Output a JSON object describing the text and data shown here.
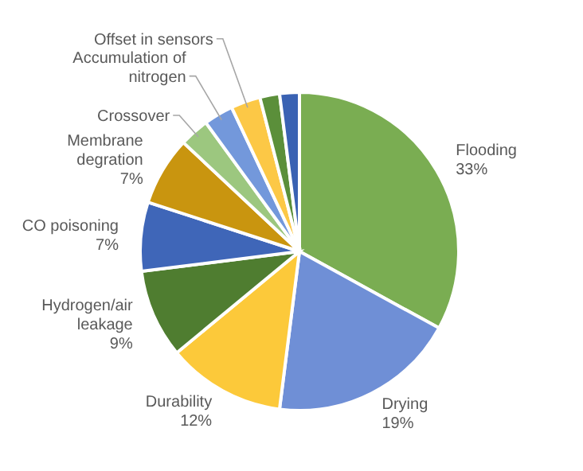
{
  "chart_data": {
    "type": "pie",
    "categories": [
      "Flooding",
      "Drying",
      "Durability",
      "Hydrogen/air leakage",
      "CO poisoning",
      "Membrane degration",
      "Crossover",
      "Accumulation of nitrogen",
      "Offset in sensors",
      null,
      null
    ],
    "values": [
      33,
      19,
      12,
      9,
      7,
      7,
      3,
      3,
      3,
      2,
      2
    ],
    "value_labels": [
      "33%",
      "19%",
      "12%",
      "9%",
      "7%",
      "7%",
      null,
      null,
      null,
      null,
      null
    ],
    "colors": [
      "#7aad52",
      "#6f8fd6",
      "#fcc93a",
      "#4f7d30",
      "#3f66b8",
      "#c9950f",
      "#9cc77f",
      "#7398db",
      "#fcc846",
      "#5b8f3a",
      "#3a62b3"
    ]
  }
}
